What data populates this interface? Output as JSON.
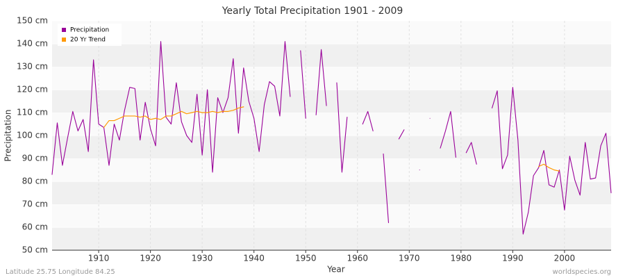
{
  "chart_data": {
    "type": "line",
    "title": "Yearly Total Precipitation 1901 - 2009",
    "x_label": "Year",
    "y_label": "Precipitation",
    "footer_left": "Latitude 25.75 Longitude 84.25",
    "footer_right": "worldspecies.org",
    "x": [
      1901,
      1902,
      1903,
      1904,
      1905,
      1906,
      1907,
      1908,
      1909,
      1910,
      1911,
      1912,
      1913,
      1914,
      1915,
      1916,
      1917,
      1918,
      1919,
      1920,
      1921,
      1922,
      1923,
      1924,
      1925,
      1926,
      1927,
      1928,
      1929,
      1930,
      1931,
      1932,
      1933,
      1934,
      1935,
      1936,
      1937,
      1938,
      1939,
      1940,
      1941,
      1942,
      1943,
      1944,
      1945,
      1946,
      1947,
      1948,
      1949,
      1950,
      1951,
      1952,
      1953,
      1954,
      1955,
      1956,
      1957,
      1958,
      1959,
      1960,
      1961,
      1962,
      1963,
      1964,
      1965,
      1966,
      1967,
      1968,
      1969,
      1970,
      1971,
      1972,
      1973,
      1974,
      1975,
      1976,
      1977,
      1978,
      1979,
      1980,
      1981,
      1982,
      1983,
      1984,
      1985,
      1986,
      1987,
      1988,
      1989,
      1990,
      1991,
      1992,
      1993,
      1994,
      1995,
      1996,
      1997,
      1998,
      1999,
      2000,
      2001,
      2002,
      2003,
      2004,
      2005,
      2006,
      2007,
      2008,
      2009
    ],
    "series": [
      {
        "name": "Precipitation",
        "color": "#990099",
        "values": [
          83,
          105.5,
          87,
          99,
          110.5,
          102,
          107,
          93,
          133,
          105,
          103.5,
          87,
          105,
          98,
          111,
          121,
          120.5,
          98,
          114.5,
          103,
          95.5,
          141,
          108,
          105,
          123,
          106,
          100,
          97,
          118,
          91.5,
          120,
          84,
          116.5,
          110,
          116.5,
          133.5,
          101,
          129.5,
          115,
          107.5,
          93,
          113.5,
          123.5,
          121.5,
          108.5,
          141,
          117,
          null,
          137,
          107.5,
          null,
          109,
          137.5,
          113,
          null,
          123,
          84,
          108,
          null,
          null,
          105,
          110.5,
          102,
          null,
          92,
          62,
          null,
          98.5,
          102.5,
          null,
          null,
          85,
          null,
          107.5,
          null,
          94.5,
          102,
          110.5,
          90.5,
          null,
          92.5,
          97,
          87.5,
          null,
          null,
          112,
          119.5,
          85.5,
          91.5,
          121,
          98,
          57,
          66.5,
          82.5,
          86,
          93.5,
          78.5,
          77.5,
          85,
          67.5,
          91,
          80.5,
          74,
          97,
          81,
          81.5,
          95.5,
          101,
          75
        ]
      },
      {
        "name": "20 Yr Trend",
        "color": "#ff9900",
        "values": [
          null,
          null,
          null,
          null,
          null,
          null,
          null,
          null,
          null,
          null,
          103.5,
          106.5,
          106.5,
          107.5,
          108.5,
          108.5,
          108.5,
          108,
          108.5,
          107,
          107.5,
          107,
          108.5,
          108.5,
          109.5,
          110.5,
          109.5,
          110,
          110.5,
          110,
          110,
          110.5,
          110,
          110.5,
          110.5,
          111,
          112,
          112.5,
          null,
          null,
          null,
          null,
          null,
          null,
          null,
          null,
          null,
          null,
          null,
          null,
          null,
          null,
          null,
          null,
          null,
          null,
          null,
          null,
          null,
          null,
          null,
          null,
          null,
          null,
          null,
          null,
          null,
          null,
          null,
          null,
          null,
          null,
          null,
          null,
          null,
          null,
          null,
          null,
          null,
          null,
          null,
          null,
          null,
          null,
          null,
          null,
          null,
          null,
          null,
          null,
          null,
          null,
          null,
          null,
          86.5,
          87.5,
          86,
          85,
          84.5,
          null,
          null,
          null,
          null,
          null,
          null,
          null,
          null,
          null,
          null
        ]
      }
    ],
    "xlim": [
      1901,
      2009
    ],
    "xticks": [
      1910,
      1920,
      1930,
      1940,
      1950,
      1960,
      1970,
      1980,
      1990,
      2000
    ],
    "ylim": [
      50,
      150
    ],
    "yticks": [
      {
        "value": 50,
        "label": "50 cm"
      },
      {
        "value": 60,
        "label": "60 cm"
      },
      {
        "value": 70,
        "label": "70 cm"
      },
      {
        "value": 80,
        "label": "80 cm"
      },
      {
        "value": 90,
        "label": "90 cm"
      },
      {
        "value": 100,
        "label": "100 cm"
      },
      {
        "value": 110,
        "label": "110 cm"
      },
      {
        "value": 120,
        "label": "120 cm"
      },
      {
        "value": 130,
        "label": "130 cm"
      },
      {
        "value": 140,
        "label": "140 cm"
      },
      {
        "value": 150,
        "label": "150 cm"
      }
    ],
    "grid": true,
    "legend": "top-left"
  }
}
